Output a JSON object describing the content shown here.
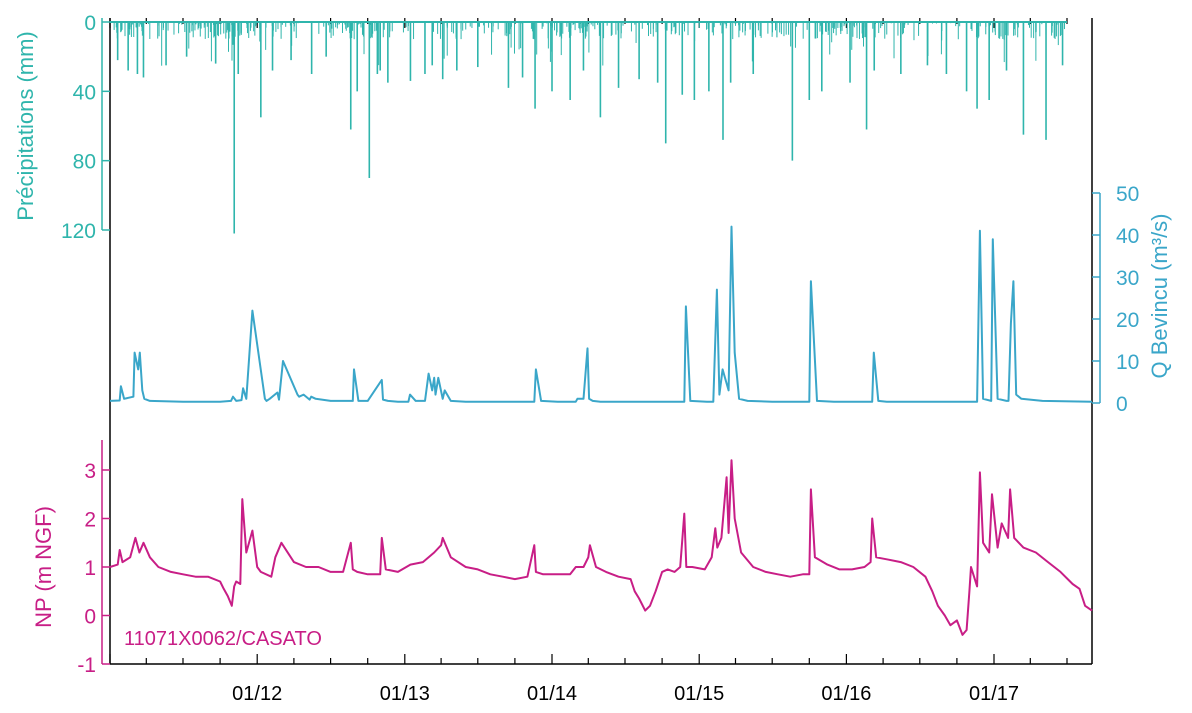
{
  "colors": {
    "precipitation": "#2fb5ac",
    "discharge": "#3aa6c9",
    "groundwater": "#c81e86",
    "axis": "#000000"
  },
  "chart_data": [
    {
      "type": "bar",
      "panel": "precipitation",
      "ylabel": "Précipitations (mm)",
      "yaxis_inverted": true,
      "ylim": [
        0,
        120
      ],
      "yticks": [
        "0",
        "40",
        "80",
        "120"
      ],
      "x_range": [
        "2011-01-01",
        "2017-09-01"
      ],
      "series": [
        {
          "x": [
            "2011-01-20",
            "2011-02-15",
            "2011-03-10",
            "2011-03-25",
            "2011-05-20",
            "2011-07-10",
            "2011-09-20",
            "2011-11-05",
            "2011-11-15",
            "2012-01-10",
            "2012-02-08",
            "2012-03-25",
            "2012-05-15",
            "2012-06-20",
            "2012-08-20",
            "2012-09-05",
            "2012-10-05",
            "2012-10-25",
            "2012-11-01",
            "2012-11-20",
            "2013-01-15",
            "2013-02-20",
            "2013-03-10",
            "2013-04-05",
            "2013-05-10",
            "2013-07-01",
            "2013-09-15",
            "2013-10-20",
            "2013-11-20",
            "2014-01-01",
            "2014-02-15",
            "2014-03-20",
            "2014-05-01",
            "2014-06-15",
            "2014-08-05",
            "2014-09-20",
            "2014-10-10",
            "2014-11-20",
            "2014-12-20",
            "2015-01-25",
            "2015-03-01",
            "2015-03-20",
            "2015-05-15",
            "2015-08-20",
            "2015-10-01",
            "2015-11-01",
            "2016-01-10",
            "2016-02-20",
            "2016-03-10",
            "2016-05-15",
            "2016-07-20",
            "2016-09-05",
            "2016-10-25",
            "2016-11-20",
            "2016-12-20",
            "2017-02-01",
            "2017-03-15",
            "2017-05-10",
            "2017-06-20"
          ],
          "y": [
            22,
            28,
            30,
            32,
            25,
            20,
            24,
            122,
            30,
            55,
            28,
            22,
            30,
            20,
            62,
            40,
            90,
            30,
            28,
            35,
            34,
            30,
            25,
            33,
            28,
            26,
            38,
            32,
            50,
            40,
            45,
            28,
            55,
            38,
            33,
            35,
            70,
            42,
            45,
            40,
            68,
            35,
            30,
            80,
            45,
            40,
            35,
            62,
            28,
            30,
            25,
            30,
            40,
            50,
            45,
            28,
            65,
            68,
            25
          ]
        }
      ]
    },
    {
      "type": "line",
      "panel": "discharge",
      "ylabel": "Q Bevincu (m³/s)",
      "ylim": [
        0,
        50
      ],
      "yticks": [
        "0",
        "10",
        "20",
        "30",
        "40",
        "50"
      ],
      "x_range": [
        "2011-01-01",
        "2017-09-01"
      ],
      "series": [
        {
          "x": [
            "2011-01-01",
            "2011-01-25",
            "2011-01-28",
            "2011-02-05",
            "2011-02-28",
            "2011-03-03",
            "2011-03-12",
            "2011-03-16",
            "2011-03-22",
            "2011-03-27",
            "2011-04-10",
            "2011-07-01",
            "2011-10-01",
            "2011-10-28",
            "2011-11-02",
            "2011-11-10",
            "2011-11-23",
            "2011-11-27",
            "2011-12-05",
            "2011-12-20",
            "2012-01-20",
            "2012-01-24",
            "2012-02-01",
            "2012-02-20",
            "2012-02-24",
            "2012-03-05",
            "2012-04-10",
            "2012-04-14",
            "2012-04-25",
            "2012-05-10",
            "2012-05-14",
            "2012-05-25",
            "2012-07-01",
            "2012-08-25",
            "2012-08-28",
            "2012-09-08",
            "2012-10-01",
            "2012-11-05",
            "2012-11-08",
            "2012-11-20",
            "2012-12-15",
            "2013-01-10",
            "2013-01-14",
            "2013-01-28",
            "2013-02-20",
            "2013-03-01",
            "2013-03-10",
            "2013-03-15",
            "2013-03-18",
            "2013-03-25",
            "2013-04-05",
            "2013-04-10",
            "2013-04-25",
            "2013-06-01",
            "2013-09-01",
            "2013-11-18",
            "2013-11-22",
            "2013-12-05",
            "2014-01-15",
            "2014-03-01",
            "2014-03-05",
            "2014-03-20",
            "2014-03-30",
            "2014-04-03",
            "2014-04-12",
            "2014-05-01",
            "2014-09-01",
            "2014-11-25",
            "2014-11-29",
            "2014-12-10",
            "2015-01-20",
            "2015-02-05",
            "2015-02-14",
            "2015-02-20",
            "2015-02-28",
            "2015-03-15",
            "2015-03-22",
            "2015-03-30",
            "2015-04-10",
            "2015-05-01",
            "2015-07-01",
            "2015-09-20",
            "2015-10-01",
            "2015-10-05",
            "2015-10-20",
            "2015-12-01",
            "2016-02-01",
            "2016-03-05",
            "2016-03-09",
            "2016-03-20",
            "2016-04-10",
            "2016-07-01",
            "2016-10-01",
            "2016-11-20",
            "2016-11-27",
            "2016-12-05",
            "2016-12-25",
            "2016-12-29",
            "2017-01-10",
            "2017-02-01",
            "2017-02-06",
            "2017-02-12",
            "2017-02-18",
            "2017-02-25",
            "2017-03-10",
            "2017-05-01",
            "2017-09-01"
          ],
          "y": [
            0.5,
            0.6,
            4,
            1,
            1.5,
            12,
            8,
            12,
            3,
            1,
            0.5,
            0.3,
            0.3,
            0.5,
            1.5,
            0.5,
            0.7,
            3.5,
            1,
            22,
            1,
            0.5,
            1,
            2.5,
            0.8,
            10,
            2,
            1.5,
            2,
            0.8,
            1.5,
            1,
            0.5,
            0.5,
            8,
            0.5,
            0.5,
            5.5,
            0.8,
            0.5,
            0.3,
            0.3,
            2,
            0.5,
            0.5,
            7,
            3,
            6,
            2,
            6,
            1,
            3,
            0.5,
            0.3,
            0.3,
            0.3,
            8,
            0.5,
            0.3,
            0.3,
            1,
            1,
            13,
            1,
            0.5,
            0.3,
            0.3,
            0.3,
            23,
            0.5,
            0.3,
            0.3,
            27,
            2,
            8,
            3,
            42,
            12,
            1,
            0.5,
            0.3,
            0.3,
            0.3,
            29,
            0.5,
            0.3,
            0.3,
            0.3,
            12,
            0.5,
            0.3,
            0.3,
            0.3,
            0.3,
            41,
            1,
            0.5,
            39,
            1,
            0.5,
            0.5,
            19,
            29,
            2,
            1,
            0.5,
            0.3
          ]
        }
      ]
    },
    {
      "type": "line",
      "panel": "groundwater",
      "ylabel": "NP (m NGF)",
      "annotation": "11071X0062/CASATO",
      "ylim": [
        -1,
        3.3
      ],
      "yticks": [
        "-1",
        "0",
        "1",
        "2",
        "3"
      ],
      "xticks": [
        "01/12",
        "01/13",
        "01/14",
        "01/15",
        "01/16",
        "01/17"
      ],
      "x_range": [
        "2011-01-01",
        "2017-09-01"
      ],
      "series": [
        {
          "x": [
            "2011-01-01",
            "2011-01-20",
            "2011-01-25",
            "2011-02-01",
            "2011-02-20",
            "2011-03-05",
            "2011-03-15",
            "2011-03-25",
            "2011-04-10",
            "2011-05-01",
            "2011-06-01",
            "2011-07-01",
            "2011-08-01",
            "2011-09-01",
            "2011-10-01",
            "2011-10-10",
            "2011-10-20",
            "2011-10-30",
            "2011-11-05",
            "2011-11-10",
            "2011-11-20",
            "2011-11-25",
            "2011-12-05",
            "2011-12-20",
            "2012-01-01",
            "2012-01-10",
            "2012-02-05",
            "2012-02-15",
            "2012-03-01",
            "2012-04-01",
            "2012-05-01",
            "2012-06-01",
            "2012-07-01",
            "2012-08-01",
            "2012-08-20",
            "2012-08-25",
            "2012-09-05",
            "2012-10-01",
            "2012-11-01",
            "2012-11-05",
            "2012-11-15",
            "2012-12-15",
            "2013-01-15",
            "2013-02-15",
            "2013-03-15",
            "2013-04-01",
            "2013-04-05",
            "2013-04-25",
            "2013-06-01",
            "2013-07-01",
            "2013-08-01",
            "2013-09-01",
            "2013-10-01",
            "2013-11-01",
            "2013-11-18",
            "2013-11-22",
            "2013-12-10",
            "2014-01-15",
            "2014-02-15",
            "2014-03-01",
            "2014-03-20",
            "2014-04-01",
            "2014-04-05",
            "2014-04-20",
            "2014-05-15",
            "2014-06-15",
            "2014-07-15",
            "2014-07-25",
            "2014-08-05",
            "2014-08-20",
            "2014-09-01",
            "2014-09-15",
            "2014-10-01",
            "2014-10-15",
            "2014-11-01",
            "2014-11-15",
            "2014-11-25",
            "2014-11-30",
            "2014-12-15",
            "2015-01-15",
            "2015-02-01",
            "2015-02-10",
            "2015-02-15",
            "2015-02-25",
            "2015-03-10",
            "2015-03-15",
            "2015-03-22",
            "2015-03-30",
            "2015-04-15",
            "2015-05-15",
            "2015-06-15",
            "2015-07-15",
            "2015-08-15",
            "2015-09-15",
            "2015-10-01",
            "2015-10-05",
            "2015-10-15",
            "2015-11-15",
            "2015-12-15",
            "2016-01-15",
            "2016-02-15",
            "2016-03-01",
            "2016-03-05",
            "2016-03-15",
            "2016-04-15",
            "2016-05-15",
            "2016-06-15",
            "2016-07-15",
            "2016-08-01",
            "2016-08-15",
            "2016-09-01",
            "2016-09-15",
            "2016-10-01",
            "2016-10-15",
            "2016-10-25",
            "2016-11-01",
            "2016-11-05",
            "2016-11-20",
            "2016-11-27",
            "2016-12-05",
            "2016-12-20",
            "2016-12-27",
            "2017-01-10",
            "2017-01-20",
            "2017-02-05",
            "2017-02-10",
            "2017-02-20",
            "2017-03-15",
            "2017-04-15",
            "2017-05-15",
            "2017-06-15",
            "2017-07-15",
            "2017-08-01",
            "2017-08-15",
            "2017-09-01"
          ],
          "y": [
            1.0,
            1.05,
            1.35,
            1.1,
            1.2,
            1.6,
            1.3,
            1.5,
            1.2,
            1.0,
            0.9,
            0.85,
            0.8,
            0.8,
            0.7,
            0.55,
            0.4,
            0.2,
            0.6,
            0.7,
            0.65,
            2.4,
            1.3,
            1.75,
            1.0,
            0.9,
            0.8,
            1.2,
            1.5,
            1.1,
            1.0,
            1.0,
            0.9,
            0.9,
            1.5,
            0.95,
            0.9,
            0.85,
            0.85,
            1.6,
            0.95,
            0.9,
            1.05,
            1.1,
            1.3,
            1.45,
            1.6,
            1.2,
            1.0,
            0.95,
            0.85,
            0.8,
            0.75,
            0.8,
            1.45,
            0.9,
            0.85,
            0.85,
            0.85,
            1.0,
            1.0,
            1.2,
            1.45,
            1.0,
            0.9,
            0.8,
            0.75,
            0.5,
            0.35,
            0.1,
            0.2,
            0.5,
            0.9,
            0.95,
            0.9,
            1.0,
            2.1,
            1.0,
            1.0,
            0.95,
            1.2,
            1.8,
            1.4,
            1.6,
            2.85,
            1.7,
            3.2,
            2.0,
            1.3,
            1.0,
            0.9,
            0.85,
            0.8,
            0.85,
            0.85,
            2.6,
            1.2,
            1.05,
            0.95,
            0.95,
            1.0,
            1.1,
            2.0,
            1.2,
            1.15,
            1.1,
            1.0,
            0.8,
            0.5,
            0.2,
            0.0,
            -0.2,
            -0.1,
            -0.4,
            -0.3,
            0.5,
            1.0,
            0.6,
            2.95,
            1.5,
            1.3,
            2.5,
            1.4,
            1.9,
            1.6,
            2.6,
            1.6,
            1.4,
            1.3,
            1.1,
            0.9,
            0.65,
            0.55,
            0.2,
            0.1
          ]
        }
      ]
    }
  ]
}
